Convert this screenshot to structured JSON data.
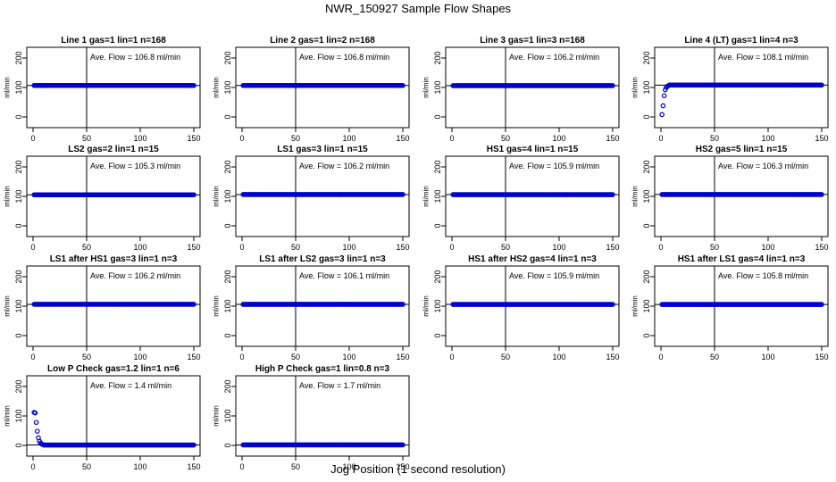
{
  "title": "NWR_150927  Sample Flow Shapes",
  "xlabel": "Jog Position (1 second resolution)",
  "colors": {
    "points": "#0000cc",
    "axis": "#000000"
  },
  "chart_data": [
    {
      "type": "scatter",
      "title": "Line 1 gas=1 lin=1 n=168",
      "annotation": "Ave. Flow = 106.8  ml/min",
      "ylabel": "ml/min",
      "shape": "flat",
      "level": 106.8,
      "xlim": [
        0,
        150
      ],
      "ylim": [
        0,
        200
      ],
      "xticks": [
        0,
        50,
        100,
        150
      ],
      "yticks": [
        0,
        100,
        200
      ],
      "vline": 50,
      "hline": 106.8
    },
    {
      "type": "scatter",
      "title": "Line 2 gas=1 lin=2 n=168",
      "annotation": "Ave. Flow = 106.8  ml/min",
      "ylabel": "ml/min",
      "shape": "flat",
      "level": 106.8,
      "xlim": [
        0,
        150
      ],
      "ylim": [
        0,
        200
      ],
      "xticks": [
        0,
        50,
        100,
        150
      ],
      "yticks": [
        0,
        100,
        200
      ],
      "vline": 50,
      "hline": 106.8
    },
    {
      "type": "scatter",
      "title": "Line 3 gas=1 lin=3 n=168",
      "annotation": "Ave. Flow = 106.2  ml/min",
      "ylabel": "ml/min",
      "shape": "flat",
      "level": 106.2,
      "xlim": [
        0,
        150
      ],
      "ylim": [
        0,
        200
      ],
      "xticks": [
        0,
        50,
        100,
        150
      ],
      "yticks": [
        0,
        100,
        200
      ],
      "vline": 50,
      "hline": 106.2
    },
    {
      "type": "scatter",
      "title": "Line 4 (LT) gas=1 lin=4 n=3",
      "annotation": "Ave. Flow = 108.1  ml/min",
      "ylabel": "ml/min",
      "shape": "rise",
      "level": 108.1,
      "xlim": [
        0,
        150
      ],
      "ylim": [
        0,
        200
      ],
      "xticks": [
        0,
        50,
        100,
        150
      ],
      "yticks": [
        0,
        100,
        200
      ],
      "vline": 50,
      "hline": 108.1
    },
    {
      "type": "scatter",
      "title": "LS2 gas=2 lin=1 n=15",
      "annotation": "Ave. Flow = 105.3  ml/min",
      "ylabel": "ml/min",
      "shape": "flat",
      "level": 105.3,
      "xlim": [
        0,
        150
      ],
      "ylim": [
        0,
        200
      ],
      "xticks": [
        0,
        50,
        100,
        150
      ],
      "yticks": [
        0,
        100,
        200
      ],
      "vline": 50,
      "hline": 105.3
    },
    {
      "type": "scatter",
      "title": "LS1 gas=3 lin=1 n=15",
      "annotation": "Ave. Flow = 106.2  ml/min",
      "ylabel": "ml/min",
      "shape": "flat",
      "level": 106.2,
      "xlim": [
        0,
        150
      ],
      "ylim": [
        0,
        200
      ],
      "xticks": [
        0,
        50,
        100,
        150
      ],
      "yticks": [
        0,
        100,
        200
      ],
      "vline": 50,
      "hline": 106.2
    },
    {
      "type": "scatter",
      "title": "HS1 gas=4 lin=1 n=15",
      "annotation": "Ave. Flow = 105.9  ml/min",
      "ylabel": "ml/min",
      "shape": "flat",
      "level": 105.9,
      "xlim": [
        0,
        150
      ],
      "ylim": [
        0,
        200
      ],
      "xticks": [
        0,
        50,
        100,
        150
      ],
      "yticks": [
        0,
        100,
        200
      ],
      "vline": 50,
      "hline": 105.9
    },
    {
      "type": "scatter",
      "title": "HS2 gas=5 lin=1 n=15",
      "annotation": "Ave. Flow = 106.3  ml/min",
      "ylabel": "ml/min",
      "shape": "flat",
      "level": 106.3,
      "xlim": [
        0,
        150
      ],
      "ylim": [
        0,
        200
      ],
      "xticks": [
        0,
        50,
        100,
        150
      ],
      "yticks": [
        0,
        100,
        200
      ],
      "vline": 50,
      "hline": 106.3
    },
    {
      "type": "scatter",
      "title": "LS1 after HS1 gas=3 lin=1 n=3",
      "annotation": "Ave. Flow = 106.2  ml/min",
      "ylabel": "ml/min",
      "shape": "flat",
      "level": 106.2,
      "xlim": [
        0,
        150
      ],
      "ylim": [
        0,
        200
      ],
      "xticks": [
        0,
        50,
        100,
        150
      ],
      "yticks": [
        0,
        100,
        200
      ],
      "vline": 50,
      "hline": 106.2
    },
    {
      "type": "scatter",
      "title": "LS1 after LS2 gas=3 lin=1 n=3",
      "annotation": "Ave. Flow = 106.1  ml/min",
      "ylabel": "ml/min",
      "shape": "flat",
      "level": 106.1,
      "xlim": [
        0,
        150
      ],
      "ylim": [
        0,
        200
      ],
      "xticks": [
        0,
        50,
        100,
        150
      ],
      "yticks": [
        0,
        100,
        200
      ],
      "vline": 50,
      "hline": 106.1
    },
    {
      "type": "scatter",
      "title": "HS1 after HS2 gas=4 lin=1 n=3",
      "annotation": "Ave. Flow = 105.9  ml/min",
      "ylabel": "ml/min",
      "shape": "flat",
      "level": 105.9,
      "xlim": [
        0,
        150
      ],
      "ylim": [
        0,
        200
      ],
      "xticks": [
        0,
        50,
        100,
        150
      ],
      "yticks": [
        0,
        100,
        200
      ],
      "vline": 50,
      "hline": 105.9
    },
    {
      "type": "scatter",
      "title": "HS1 after LS1 gas=4 lin=1 n=3",
      "annotation": "Ave. Flow = 105.8  ml/min",
      "ylabel": "ml/min",
      "shape": "flat",
      "level": 105.8,
      "xlim": [
        0,
        150
      ],
      "ylim": [
        0,
        200
      ],
      "xticks": [
        0,
        50,
        100,
        150
      ],
      "yticks": [
        0,
        100,
        200
      ],
      "vline": 50,
      "hline": 105.8
    },
    {
      "type": "scatter",
      "title": "Low P Check gas=1.2 lin=1 n=6",
      "annotation": "Ave. Flow = 1.4  ml/min",
      "ylabel": "ml/min",
      "shape": "decay",
      "level": 1.4,
      "xlim": [
        0,
        150
      ],
      "ylim": [
        0,
        200
      ],
      "xticks": [
        0,
        50,
        100,
        150
      ],
      "yticks": [
        0,
        100,
        200
      ],
      "vline": 50,
      "hline": 1.4
    },
    {
      "type": "scatter",
      "title": "High P Check gas=1 lin=0.8 n=3",
      "annotation": "Ave. Flow = 1.7  ml/min",
      "ylabel": "ml/min",
      "shape": "flat",
      "level": 1.7,
      "xlim": [
        0,
        150
      ],
      "ylim": [
        0,
        200
      ],
      "xticks": [
        0,
        50,
        100,
        150
      ],
      "yticks": [
        0,
        100,
        200
      ],
      "vline": 50,
      "hline": 1.7
    }
  ]
}
